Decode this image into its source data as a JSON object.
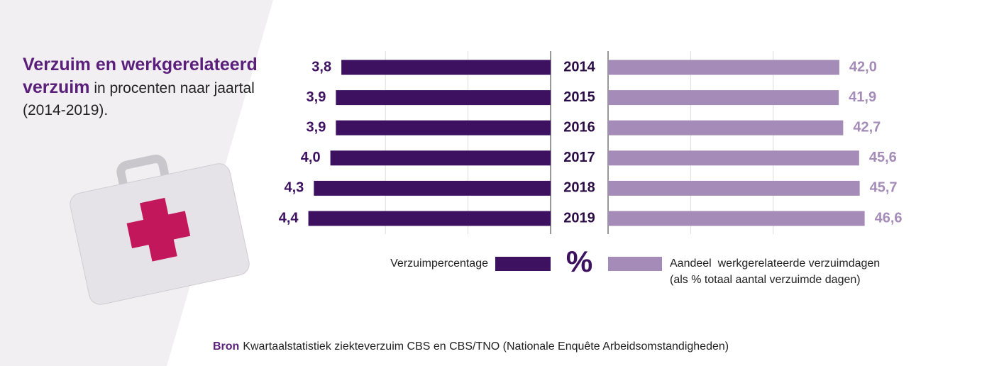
{
  "chart_data": {
    "type": "bar",
    "title": "Verzuim en werkgerelateerd verzuim",
    "subtitle": "in procenten naar jaartal (2014-2019).",
    "categories": [
      "2014",
      "2015",
      "2016",
      "2017",
      "2018",
      "2019"
    ],
    "center_label": "%",
    "series": [
      {
        "name": "Verzuimpercentage",
        "color": "#3d1060",
        "label_color": "#3d1060",
        "side": "left",
        "values": [
          3.8,
          3.9,
          3.9,
          4.0,
          4.3,
          4.4
        ],
        "value_labels": [
          "3,8",
          "3,9",
          "3,9",
          "4,0",
          "4,3",
          "4,4"
        ],
        "xlim": [
          0,
          5
        ],
        "xticks": [
          0,
          1.5,
          3
        ]
      },
      {
        "name": "Aandeel  werkgerelateerde verzuimdagen",
        "description": "(als % totaal aantal verzuimde dagen)",
        "color": "#a58cb8",
        "label_color": "#a58cb8",
        "side": "right",
        "values": [
          42.0,
          41.9,
          42.7,
          45.6,
          45.7,
          46.6
        ],
        "value_labels": [
          "42,0",
          "41,9",
          "42,7",
          "45,6",
          "45,7",
          "46,6"
        ],
        "xlim": [
          0,
          50
        ],
        "xticks": [
          0,
          15,
          30
        ]
      }
    ],
    "grid": true,
    "source_label": "Bron",
    "source": "Kwartaalstatistiek ziekteverzuim CBS en CBS/TNO (Nationale Enquête Arbeidsomstandigheden)"
  }
}
